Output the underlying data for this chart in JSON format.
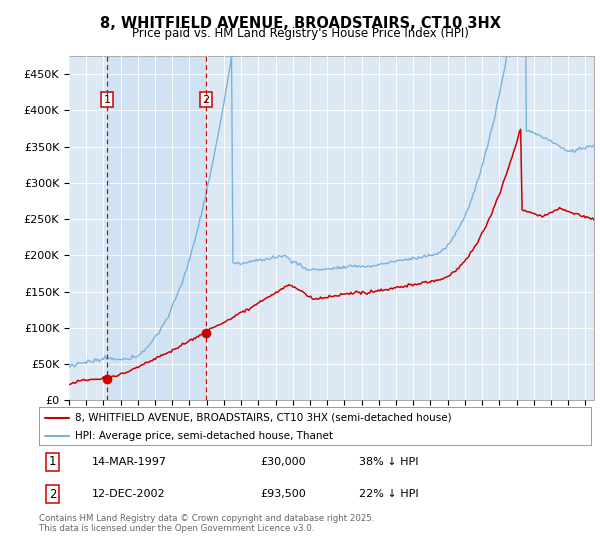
{
  "title": "8, WHITFIELD AVENUE, BROADSTAIRS, CT10 3HX",
  "subtitle": "Price paid vs. HM Land Registry's House Price Index (HPI)",
  "legend_line1": "8, WHITFIELD AVENUE, BROADSTAIRS, CT10 3HX (semi-detached house)",
  "legend_line2": "HPI: Average price, semi-detached house, Thanet",
  "footnote": "Contains HM Land Registry data © Crown copyright and database right 2025.\nThis data is licensed under the Open Government Licence v3.0.",
  "purchase1_date": 1997.21,
  "purchase1_price": 30000,
  "purchase1_label": "14-MAR-1997",
  "purchase1_pct": "38% ↓ HPI",
  "purchase2_date": 2002.95,
  "purchase2_price": 93500,
  "purchase2_label": "12-DEC-2002",
  "purchase2_pct": "22% ↓ HPI",
  "background_color": "#dce9f5",
  "hpi_color": "#7ab3d9",
  "price_color": "#cc0000",
  "vline_color": "#cc0000",
  "ylim_max": 475000,
  "xlim_start": 1995,
  "xlim_end": 2025.5,
  "yticks": [
    0,
    50000,
    100000,
    150000,
    200000,
    250000,
    300000,
    350000,
    400000,
    450000
  ],
  "ytick_labels": [
    "£0",
    "£50K",
    "£100K",
    "£150K",
    "£200K",
    "£250K",
    "£300K",
    "£350K",
    "£400K",
    "£450K"
  ]
}
